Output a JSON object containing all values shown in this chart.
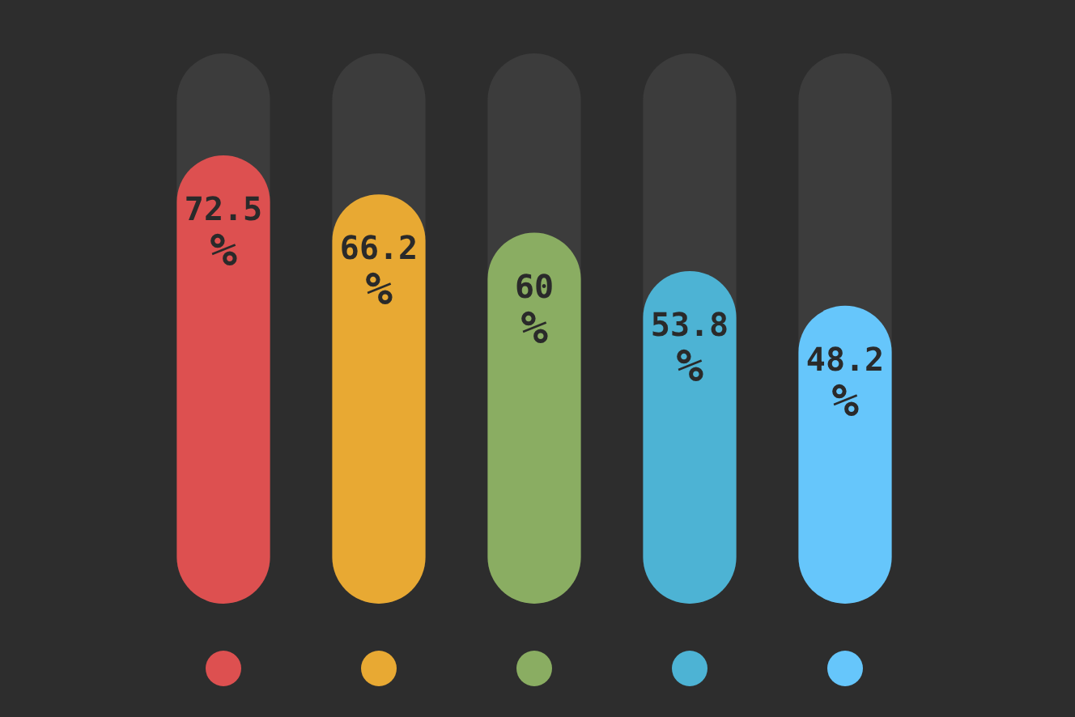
{
  "chart_data": {
    "type": "bar",
    "categories": [
      null,
      null,
      null,
      null,
      null
    ],
    "values": [
      72.5,
      66.2,
      60,
      53.8,
      48.2
    ],
    "colors": [
      "#dd5050",
      "#e8a933",
      "#8aad62",
      "#4db3d4",
      "#66c6fb"
    ],
    "value_labels": [
      "72.5%",
      "66.2%",
      "60%",
      "53.8%",
      "48.2%"
    ]
  }
}
